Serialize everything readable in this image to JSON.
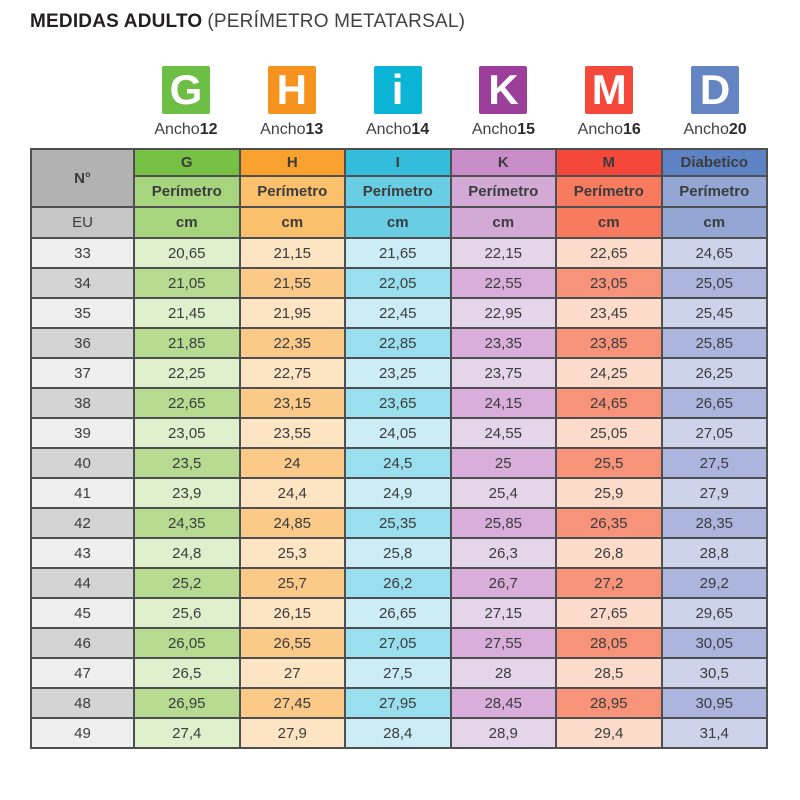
{
  "title": {
    "main": "MEDIDAS ADULTO",
    "subtitle": "(PERÍMETRO METATARSAL)"
  },
  "badges": [
    {
      "letter": "G",
      "label": "Ancho",
      "width_number": "12",
      "color": "#6cbe45"
    },
    {
      "letter": "H",
      "label": "Ancho",
      "width_number": "13",
      "color": "#f6921e"
    },
    {
      "letter": "i",
      "label": "Ancho",
      "width_number": "14",
      "color": "#0cb5d5"
    },
    {
      "letter": "K",
      "label": "Ancho",
      "width_number": "15",
      "color": "#9b3f9b"
    },
    {
      "letter": "M",
      "label": "Ancho",
      "width_number": "16",
      "color": "#f6473b"
    },
    {
      "letter": "D",
      "label": "Ancho",
      "width_number": "20",
      "color": "#6484c3"
    }
  ],
  "chart_data": {
    "type": "table",
    "title": "MEDIDAS ADULTO (PERÍMETRO METATARSAL)",
    "columns": [
      "G",
      "H",
      "I",
      "K",
      "M",
      "Diabetico"
    ],
    "anchos": [
      "12",
      "13",
      "14",
      "15",
      "16",
      "20"
    ],
    "row_header": "EU",
    "measure": "Perímetro",
    "unit": "cm",
    "rows": [
      {
        "eu": "33",
        "values": [
          "20,65",
          "21,15",
          "21,65",
          "22,15",
          "22,65",
          "24,65"
        ]
      },
      {
        "eu": "34",
        "values": [
          "21,05",
          "21,55",
          "22,05",
          "22,55",
          "23,05",
          "25,05"
        ]
      },
      {
        "eu": "35",
        "values": [
          "21,45",
          "21,95",
          "22,45",
          "22,95",
          "23,45",
          "25,45"
        ]
      },
      {
        "eu": "36",
        "values": [
          "21,85",
          "22,35",
          "22,85",
          "23,35",
          "23,85",
          "25,85"
        ]
      },
      {
        "eu": "37",
        "values": [
          "22,25",
          "22,75",
          "23,25",
          "23,75",
          "24,25",
          "26,25"
        ]
      },
      {
        "eu": "38",
        "values": [
          "22,65",
          "23,15",
          "23,65",
          "24,15",
          "24,65",
          "26,65"
        ]
      },
      {
        "eu": "39",
        "values": [
          "23,05",
          "23,55",
          "24,05",
          "24,55",
          "25,05",
          "27,05"
        ]
      },
      {
        "eu": "40",
        "values": [
          "23,5",
          "24",
          "24,5",
          "25",
          "25,5",
          "27,5"
        ]
      },
      {
        "eu": "41",
        "values": [
          "23,9",
          "24,4",
          "24,9",
          "25,4",
          "25,9",
          "27,9"
        ]
      },
      {
        "eu": "42",
        "values": [
          "24,35",
          "24,85",
          "25,35",
          "25,85",
          "26,35",
          "28,35"
        ]
      },
      {
        "eu": "43",
        "values": [
          "24,8",
          "25,3",
          "25,8",
          "26,3",
          "26,8",
          "28,8"
        ]
      },
      {
        "eu": "44",
        "values": [
          "25,2",
          "25,7",
          "26,2",
          "26,7",
          "27,2",
          "29,2"
        ]
      },
      {
        "eu": "45",
        "values": [
          "25,6",
          "26,15",
          "26,65",
          "27,15",
          "27,65",
          "29,65"
        ]
      },
      {
        "eu": "46",
        "values": [
          "26,05",
          "26,55",
          "27,05",
          "27,55",
          "28,05",
          "30,05"
        ]
      },
      {
        "eu": "47",
        "values": [
          "26,5",
          "27",
          "27,5",
          "28",
          "28,5",
          "30,5"
        ]
      },
      {
        "eu": "48",
        "values": [
          "26,95",
          "27,45",
          "27,95",
          "28,45",
          "28,95",
          "30,95"
        ]
      },
      {
        "eu": "49",
        "values": [
          "27,4",
          "27,9",
          "28,4",
          "28,9",
          "29,4",
          "31,4"
        ]
      }
    ]
  },
  "table": {
    "corner_label": "N°",
    "eu_label": "EU",
    "subheader_label": "Perímetro",
    "unit_label": "cm",
    "border_color": "#4e4f51",
    "gray": {
      "corner": "#b2b2b2",
      "eu": "#c6c6c6",
      "row_light": "#efefef",
      "row_dark": "#d4d4d4"
    },
    "column_styles": [
      {
        "key": "g",
        "header_label": "G",
        "header": "#76c144",
        "sub": "#a7d57e",
        "row_light": "#def0cc",
        "row_dark": "#b7db91"
      },
      {
        "key": "h",
        "header_label": "H",
        "header": "#f8a12f",
        "sub": "#fbc06c",
        "row_light": "#fde5c3",
        "row_dark": "#fbca88"
      },
      {
        "key": "i",
        "header_label": "I",
        "header": "#33bdda",
        "sub": "#69cee4",
        "row_light": "#ccedf6",
        "row_dark": "#9adfee"
      },
      {
        "key": "k",
        "header_label": "K",
        "header": "#c88dc9",
        "sub": "#d3aad6",
        "row_light": "#e4d5ea",
        "row_dark": "#d9aedb"
      },
      {
        "key": "m",
        "header_label": "M",
        "header": "#f4483a",
        "sub": "#f87a5f",
        "row_light": "#fcdbcb",
        "row_dark": "#f79379"
      },
      {
        "key": "diabetico",
        "header_label": "Diabetico",
        "header": "#5d83c4",
        "sub": "#93a6d4",
        "row_light": "#cdd3ea",
        "row_dark": "#acb5de"
      }
    ]
  }
}
